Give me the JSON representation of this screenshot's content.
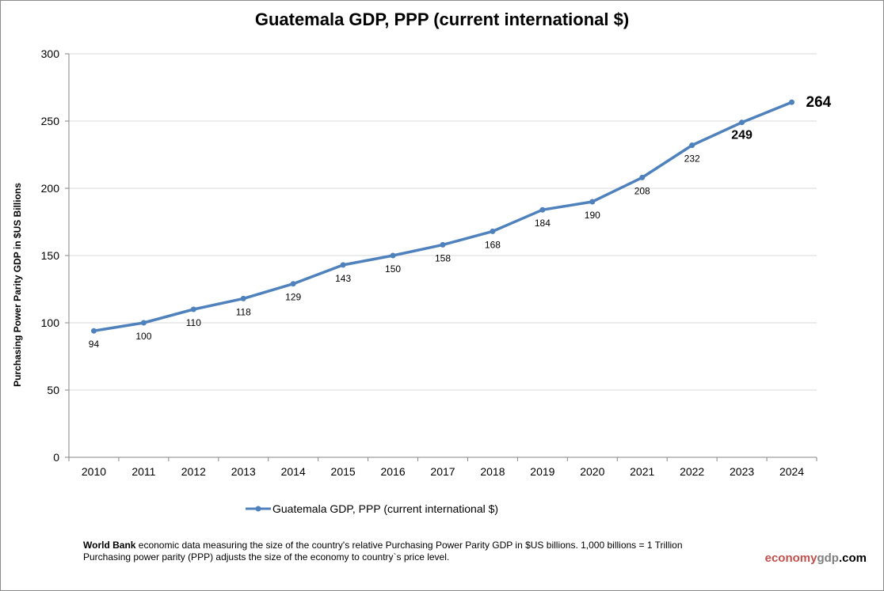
{
  "chart_data": {
    "type": "line",
    "title": "Guatemala GDP, PPP (current international $)",
    "ylabel": "Purchasing Power Parity GDP in $US Billions",
    "xlabel": "",
    "categories": [
      "2010",
      "2011",
      "2012",
      "2013",
      "2014",
      "2015",
      "2016",
      "2017",
      "2018",
      "2019",
      "2020",
      "2021",
      "2022",
      "2023",
      "2024"
    ],
    "series": [
      {
        "name": "Guatemala GDP, PPP (current international $)",
        "values": [
          94,
          100,
          110,
          118,
          129,
          143,
          150,
          158,
          168,
          184,
          190,
          208,
          232,
          249,
          264
        ],
        "color": "#4f81bd"
      }
    ],
    "ylim": [
      0,
      300
    ],
    "yticks": [
      0,
      50,
      100,
      150,
      200,
      250,
      300
    ],
    "grid": true,
    "legend": "bottom"
  },
  "footnote": {
    "bold": "World Bank",
    "line1": " economic data  measuring the size of the country's relative  Purchasing Power Parity GDP in $US billions. 1,000 billions = 1 Trillion",
    "line2": "Purchasing power parity (PPP) adjusts the size of the economy to country`s price level."
  },
  "brand": {
    "part1": "economy",
    "part2": "gdp",
    "part3": ".com",
    "color1": "#c0504d",
    "color2": "#7f7f7f",
    "color3": "#000000"
  }
}
